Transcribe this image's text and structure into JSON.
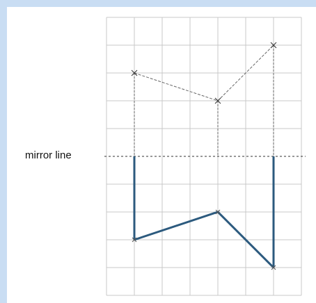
{
  "labels": {
    "mirror_line": "mirror line"
  },
  "grid": {
    "columns": 7,
    "rows": 10,
    "mirror_row": 5
  },
  "shapes": {
    "original_points": [
      [
        1,
        2
      ],
      [
        4,
        3
      ],
      [
        6,
        1
      ]
    ],
    "original_style": "dashed",
    "original_color": "#666666",
    "reflection_style": "solid",
    "reflection_color": "#2c5a7e",
    "mirror_line_style": "dashed"
  }
}
